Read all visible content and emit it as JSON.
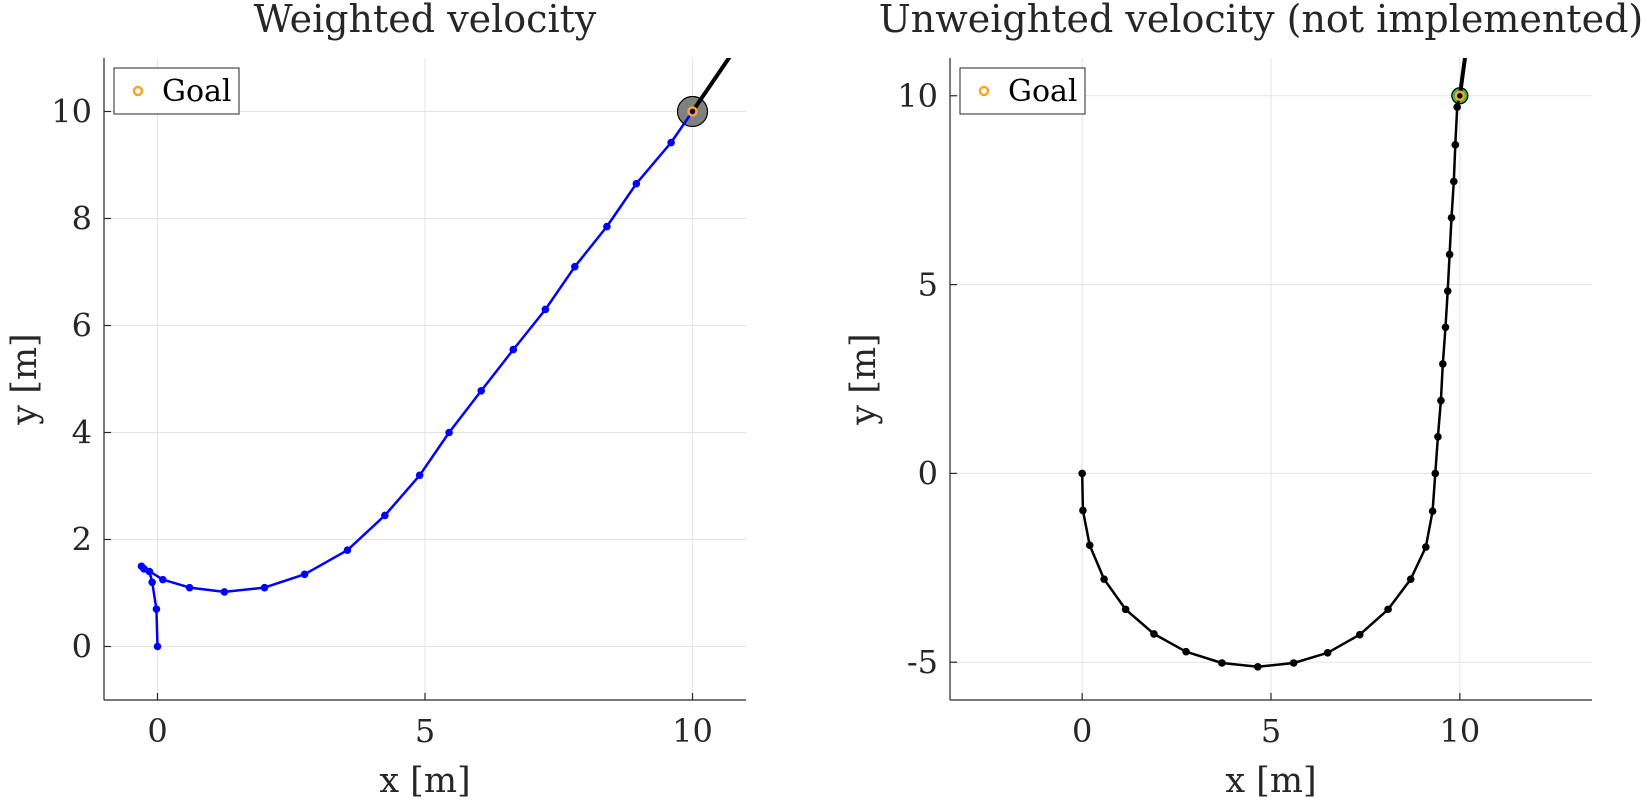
{
  "chart_data": [
    {
      "type": "line",
      "title": "Weighted velocity",
      "xlabel": "x [m]",
      "ylabel": "y [m]",
      "xlim": [
        -1,
        11
      ],
      "ylim": [
        -1,
        11
      ],
      "xticks": [
        0,
        5,
        10
      ],
      "yticks": [
        0,
        2,
        4,
        6,
        8,
        10
      ],
      "grid": true,
      "legend": {
        "placement": "top-left",
        "entries": [
          "Goal"
        ]
      },
      "goal": {
        "x": 10,
        "y": 10
      },
      "series": [
        {
          "color": "#0000ff",
          "x": [
            0,
            -0.02,
            -0.1,
            -0.15,
            -0.25,
            -0.3,
            0.1,
            0.6,
            1.25,
            2.0,
            2.75,
            3.55,
            4.25,
            4.9,
            5.45,
            6.05,
            6.65,
            7.25,
            7.8,
            8.4,
            8.95,
            9.6,
            10.0
          ],
          "y": [
            0,
            0.7,
            1.2,
            1.4,
            1.45,
            1.5,
            1.25,
            1.1,
            1.02,
            1.1,
            1.35,
            1.8,
            2.45,
            3.2,
            4.0,
            4.78,
            5.55,
            6.3,
            7.1,
            7.85,
            8.65,
            9.42,
            10.0
          ]
        }
      ],
      "heading_line": {
        "color": "#000000",
        "x": [
          10.0,
          10.75
        ],
        "y": [
          10.0,
          11.1
        ]
      },
      "goal_marker_color": "#f5a623",
      "goal_halo_color": "#808080"
    },
    {
      "type": "line",
      "title": "Unweighted velocity (not implemented)",
      "xlabel": "x [m]",
      "ylabel": "y [m]",
      "xlim": [
        -3.5,
        13.5
      ],
      "ylim": [
        -6,
        11
      ],
      "xticks": [
        0,
        5,
        10
      ],
      "yticks": [
        -5,
        0,
        5,
        10
      ],
      "ytick_labels": [
        "-5",
        "0",
        "5",
        "10"
      ],
      "grid": true,
      "legend": {
        "placement": "top-left",
        "entries": [
          "Goal"
        ]
      },
      "goal": {
        "x": 10,
        "y": 10
      },
      "series": [
        {
          "color": "#000000",
          "x": [
            0,
            0.02,
            0.2,
            0.58,
            1.15,
            1.9,
            2.75,
            3.7,
            4.65,
            5.6,
            6.5,
            7.35,
            8.1,
            8.7,
            9.1,
            9.28,
            9.35,
            9.42,
            9.5,
            9.55,
            9.62,
            9.68,
            9.73,
            9.78,
            9.84,
            9.88,
            9.93,
            10.0
          ],
          "y": [
            0,
            -0.98,
            -1.9,
            -2.8,
            -3.6,
            -4.25,
            -4.72,
            -5.02,
            -5.12,
            -5.02,
            -4.75,
            -4.27,
            -3.6,
            -2.8,
            -1.95,
            -1.0,
            0.0,
            0.97,
            1.93,
            2.9,
            3.87,
            4.83,
            5.8,
            6.77,
            7.73,
            8.7,
            9.7,
            10.0
          ]
        }
      ],
      "heading_line": {
        "color": "#000000",
        "x": [
          10.0,
          10.15
        ],
        "y": [
          10.0,
          11.1
        ]
      },
      "goal_marker_color": "#f5a623",
      "goal_halo_color": "#3cb44b"
    }
  ]
}
